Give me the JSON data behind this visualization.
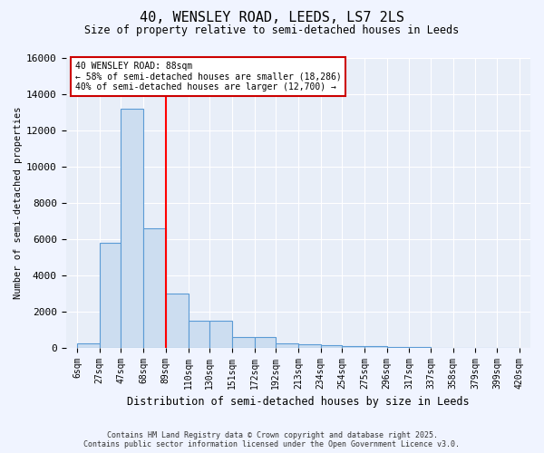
{
  "title": "40, WENSLEY ROAD, LEEDS, LS7 2LS",
  "subtitle": "Size of property relative to semi-detached houses in Leeds",
  "xlabel": "Distribution of semi-detached houses by size in Leeds",
  "ylabel": "Number of semi-detached properties",
  "bin_edges": [
    6,
    27,
    47,
    68,
    89,
    110,
    130,
    151,
    172,
    192,
    213,
    234,
    254,
    275,
    296,
    317,
    337,
    358,
    379,
    399,
    420
  ],
  "bin_labels": [
    "6sqm",
    "27sqm",
    "47sqm",
    "68sqm",
    "89sqm",
    "110sqm",
    "130sqm",
    "151sqm",
    "172sqm",
    "192sqm",
    "213sqm",
    "234sqm",
    "254sqm",
    "275sqm",
    "296sqm",
    "317sqm",
    "337sqm",
    "358sqm",
    "379sqm",
    "399sqm",
    "420sqm"
  ],
  "bar_heights": [
    250,
    5800,
    13200,
    6600,
    3000,
    1500,
    1500,
    600,
    600,
    250,
    200,
    150,
    100,
    100,
    50,
    50,
    0,
    0,
    0,
    0
  ],
  "bar_color": "#ccddf0",
  "bar_edge_color": "#5b9bd5",
  "red_line_x": 89,
  "annotation_text": "40 WENSLEY ROAD: 88sqm\n← 58% of semi-detached houses are smaller (18,286)\n40% of semi-detached houses are larger (12,700) →",
  "annotation_box_color": "#ffffff",
  "annotation_box_edge_color": "#cc0000",
  "ylim": [
    0,
    16000
  ],
  "yticks": [
    0,
    2000,
    4000,
    6000,
    8000,
    10000,
    12000,
    14000,
    16000
  ],
  "fig_bg_color": "#f0f4ff",
  "ax_bg_color": "#e8eef8",
  "footer_line1": "Contains HM Land Registry data © Crown copyright and database right 2025.",
  "footer_line2": "Contains public sector information licensed under the Open Government Licence v3.0."
}
